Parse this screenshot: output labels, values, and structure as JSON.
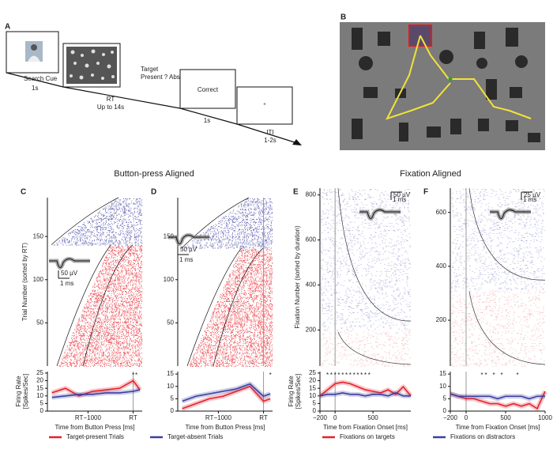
{
  "panel_a": {
    "label": "A",
    "search_cue": "Search Cue",
    "cue_time": "1s",
    "rt": "RT",
    "rt_time": "Up to 14s",
    "target_question": "Target",
    "target_options": "Present ? Absent",
    "feedback": "Correct",
    "feedback_time": "1s",
    "fixation": "+",
    "iti": "ITI",
    "iti_time": "1-2s"
  },
  "panel_b": {
    "label": "B"
  },
  "group_titles": [
    "Button-press Aligned",
    "Fixation Aligned"
  ],
  "chart_data": [
    {
      "type": "raster",
      "label": "C",
      "ylabel": "Trial Number (sorted by RT)",
      "ylim": [
        0,
        195
      ],
      "yticks": [
        50,
        100,
        150
      ],
      "xlim": [
        -1900,
        200
      ],
      "scale_v": "50 µV",
      "scale_t": "1 ms"
    },
    {
      "type": "line",
      "ylabel": [
        "Firing Rate",
        "[Spikes/Sec]"
      ],
      "xlabel": "Time from Button Press [ms]",
      "x": [
        -1800,
        -1500,
        -1200,
        -900,
        -600,
        -300,
        0,
        150
      ],
      "series": [
        {
          "name": "Target-present Trials",
          "color": "#e8202a",
          "values": [
            12,
            15,
            10,
            13,
            14,
            15,
            20,
            14
          ]
        },
        {
          "name": "Target-absent Trials",
          "color": "#3b3fa0",
          "values": [
            9,
            10,
            11,
            11,
            12,
            12,
            13,
            14
          ]
        }
      ],
      "xlim": [
        -1900,
        200
      ],
      "xticks": [
        {
          "value": -1000,
          "label": "RT−1000"
        },
        {
          "value": 0,
          "label": "RT"
        }
      ],
      "ylim": [
        0,
        26
      ],
      "yticks": [
        0,
        5,
        10,
        15,
        20,
        25
      ],
      "sig_x": [
        0,
        70
      ],
      "sig_label": "*"
    },
    {
      "type": "raster",
      "label": "D",
      "ylim": [
        0,
        195
      ],
      "yticks": [
        50,
        100,
        150
      ],
      "xlim": [
        -1900,
        200
      ],
      "marker_line": true,
      "scale_v": "50 µV",
      "scale_t": "1 ms"
    },
    {
      "type": "line",
      "xlabel": "Time from Button Press [ms]",
      "x": [
        -1800,
        -1500,
        -1200,
        -900,
        -600,
        -300,
        0,
        150
      ],
      "series": [
        {
          "color": "#e8202a",
          "values": [
            1,
            3,
            5,
            6,
            8,
            10,
            4,
            5
          ]
        },
        {
          "color": "#3b3fa0",
          "values": [
            4,
            6,
            7,
            8,
            9,
            11,
            6,
            7
          ]
        }
      ],
      "xlim": [
        -1900,
        200
      ],
      "xticks": [
        {
          "value": -1000,
          "label": "RT−1000"
        },
        {
          "value": 0,
          "label": "RT"
        }
      ],
      "ylim": [
        0,
        16
      ],
      "yticks": [
        0,
        5,
        10,
        15
      ],
      "sig_x": [
        150
      ],
      "sig_label": "*"
    },
    {
      "type": "raster",
      "label": "E",
      "ylabel": "Fixation Number (sorted by duration)",
      "ylim": [
        40,
        830
      ],
      "yticks": [
        200,
        400,
        600,
        800
      ],
      "xlim": [
        -200,
        1000
      ],
      "marker_line": true,
      "scale_v": "50 µV",
      "scale_t": "1 ms"
    },
    {
      "type": "line",
      "ylabel": [
        "Firing Rate",
        "[Spikes/Sec]"
      ],
      "xlabel": "Time from Fixation Onset [ms]",
      "x": [
        -200,
        -100,
        0,
        100,
        200,
        300,
        400,
        500,
        600,
        700,
        800,
        900,
        1000
      ],
      "series": [
        {
          "name": "Fixations on targets",
          "color": "#e8202a",
          "values": [
            10,
            14,
            18,
            19,
            18,
            16,
            14,
            13,
            12,
            14,
            11,
            16,
            10
          ]
        },
        {
          "name": "Fixations on distractors",
          "color": "#3b3fa0",
          "values": [
            10,
            11,
            11,
            12,
            11,
            11,
            10,
            11,
            11,
            10,
            12,
            10,
            10
          ]
        }
      ],
      "xlim": [
        -200,
        1000
      ],
      "xticks": [
        {
          "value": -200,
          "label": "−200"
        },
        0,
        500
      ],
      "ylim": [
        0,
        26
      ],
      "yticks": [
        0,
        5,
        10,
        15,
        20,
        25
      ],
      "sig_x": [
        -100,
        -50,
        0,
        50,
        100,
        150,
        200,
        250,
        300,
        350,
        400,
        450
      ],
      "sig_label": "*"
    },
    {
      "type": "raster",
      "label": "F",
      "ylim": [
        30,
        690
      ],
      "yticks": [
        200,
        400,
        600
      ],
      "xlim": [
        -200,
        1000
      ],
      "marker_line": true,
      "scale_v": "25 µV",
      "scale_t": "1 ms"
    },
    {
      "type": "line",
      "xlabel": "Time from Fixation Onset [ms]",
      "x": [
        -200,
        -100,
        0,
        100,
        200,
        300,
        400,
        500,
        600,
        700,
        800,
        900,
        1000
      ],
      "series": [
        {
          "color": "#e8202a",
          "values": [
            7,
            6,
            5,
            5,
            4,
            3,
            3,
            2,
            3,
            2,
            3,
            1,
            8
          ]
        },
        {
          "color": "#3b3fa0",
          "values": [
            7,
            6,
            6,
            6,
            6,
            6,
            5,
            6,
            6,
            6,
            5,
            6,
            6
          ]
        }
      ],
      "xlim": [
        -200,
        1000
      ],
      "xticks": [
        {
          "value": -200,
          "label": "−200"
        },
        0,
        500,
        1000
      ],
      "ylim": [
        0,
        16
      ],
      "yticks": [
        0,
        5,
        10,
        15
      ],
      "sig_x": [
        200,
        250,
        350,
        450,
        650
      ],
      "sig_label": "*"
    }
  ]
}
